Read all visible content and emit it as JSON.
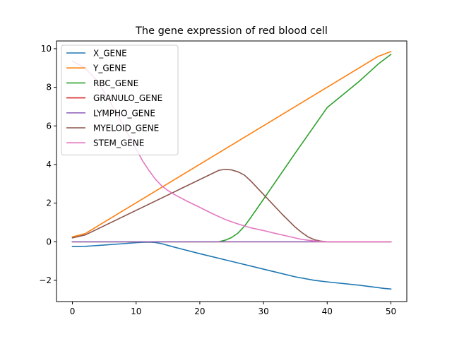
{
  "chart_data": {
    "type": "line",
    "title": "The gene expression of red blood cell",
    "xlabel": "",
    "ylabel": "",
    "xlim": [
      -2.5,
      52.5
    ],
    "ylim": [
      -3.1,
      10.4
    ],
    "xticks": [
      0,
      10,
      20,
      30,
      40,
      50
    ],
    "yticks": [
      -2,
      0,
      2,
      4,
      6,
      8,
      10
    ],
    "legend": "top-left",
    "grid": false,
    "series": [
      {
        "name": "X_GENE",
        "color": "#1f77b4",
        "x": [
          0,
          2,
          5,
          8,
          10,
          11,
          12,
          13,
          14,
          16,
          20,
          25,
          30,
          35,
          38,
          40,
          45,
          49,
          50
        ],
        "y": [
          -0.25,
          -0.24,
          -0.17,
          -0.1,
          -0.05,
          -0.03,
          -0.02,
          -0.04,
          -0.1,
          -0.28,
          -0.62,
          -1.02,
          -1.42,
          -1.82,
          -2.0,
          -2.08,
          -2.25,
          -2.42,
          -2.45
        ]
      },
      {
        "name": "Y_GENE",
        "color": "#ff7f0e",
        "x": [
          0,
          2,
          48,
          50
        ],
        "y": [
          0.25,
          0.42,
          9.6,
          9.85
        ]
      },
      {
        "name": "RBC_GENE",
        "color": "#2ca02c",
        "x": [
          0,
          23,
          24,
          25,
          26,
          27,
          28,
          30,
          35,
          40,
          45,
          48,
          50
        ],
        "y": [
          0,
          0,
          0.08,
          0.22,
          0.45,
          0.8,
          1.25,
          2.2,
          4.6,
          6.95,
          8.3,
          9.2,
          9.7
        ]
      },
      {
        "name": "GRANULO_GENE",
        "color": "#d62728",
        "x": [
          0,
          50
        ],
        "y": [
          0,
          0
        ]
      },
      {
        "name": "LYMPHO_GENE",
        "color": "#9467bd",
        "x": [
          0,
          50
        ],
        "y": [
          0,
          0
        ]
      },
      {
        "name": "MYELOID_GENE",
        "color": "#8c564b",
        "x": [
          0,
          2,
          23,
          24,
          25,
          26,
          27,
          28,
          30,
          33,
          35,
          36,
          37,
          38,
          39,
          40,
          50
        ],
        "y": [
          0.2,
          0.35,
          3.7,
          3.75,
          3.72,
          3.62,
          3.45,
          3.15,
          2.45,
          1.4,
          0.75,
          0.48,
          0.25,
          0.1,
          0.03,
          0,
          0
        ]
      },
      {
        "name": "STEM_GENE",
        "color": "#e377c2",
        "x": [
          0,
          2,
          4,
          6,
          8,
          10,
          11,
          12,
          13,
          14,
          15,
          16,
          18,
          20,
          22,
          24,
          26,
          28,
          30,
          32,
          34,
          36,
          38,
          40,
          50
        ],
        "y": [
          9.35,
          9.0,
          8.3,
          7.2,
          6.0,
          4.8,
          4.2,
          3.7,
          3.25,
          2.9,
          2.65,
          2.45,
          2.1,
          1.78,
          1.45,
          1.15,
          0.92,
          0.72,
          0.58,
          0.42,
          0.27,
          0.12,
          0.04,
          0,
          0
        ]
      }
    ]
  }
}
